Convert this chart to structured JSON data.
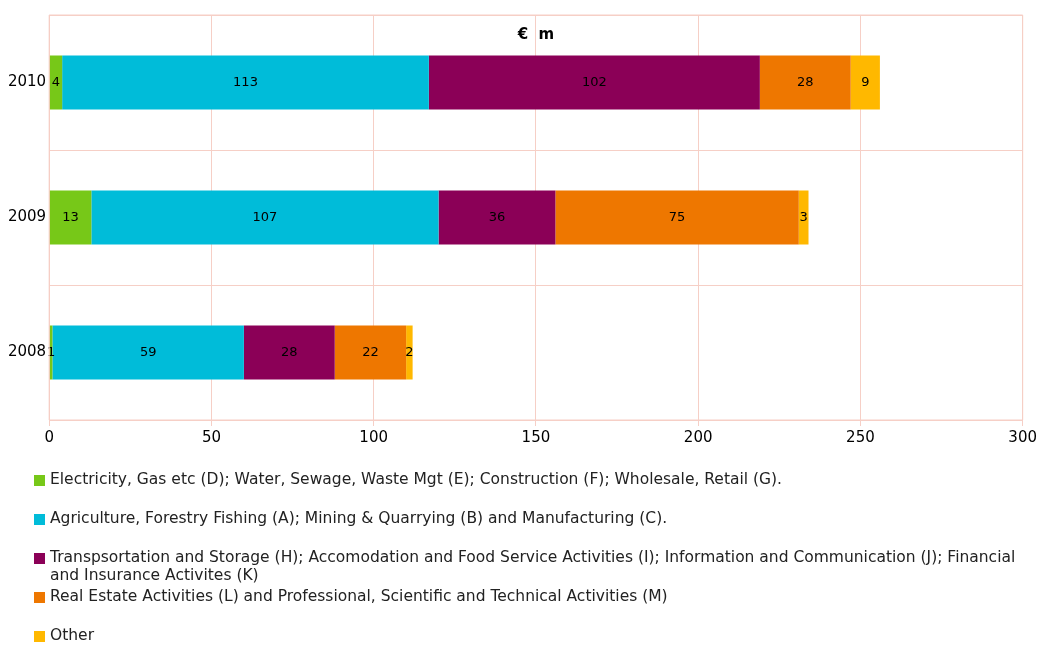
{
  "chart_data": {
    "type": "bar",
    "orientation": "horizontal",
    "stacked": true,
    "title": "€  m",
    "categories": [
      "2010",
      "2009",
      "2008"
    ],
    "series": [
      {
        "name": "Electricity, Gas etc (D); Water, Sewage, Waste Mgt (E); Construction (F); Wholesale, Retail (G).",
        "color": "#77c818",
        "values": [
          4,
          13,
          1
        ]
      },
      {
        "name": "Agriculture, Forestry Fishing (A); Mining & Quarrying (B) and Manufacturing (C).",
        "color": "#00bcd9",
        "values": [
          113,
          107,
          59
        ]
      },
      {
        "name": "Transpsortation and Storage (H); Accomodation and Food Service Activities (I); Information and Communication (J); Financial and Insurance Activites (K)",
        "color": "#8b0057",
        "values": [
          102,
          36,
          28
        ]
      },
      {
        "name": "Real Estate Activities (L) and Professional, Scientific and Technical Activities (M)",
        "color": "#ee7700",
        "values": [
          28,
          75,
          22
        ]
      },
      {
        "name": "Other",
        "color": "#ffb800",
        "values": [
          9,
          3,
          2
        ]
      }
    ],
    "xlim": [
      0,
      300
    ],
    "xticks": [
      0,
      50,
      100,
      150,
      200,
      250,
      300
    ],
    "grid": true,
    "legend": "bottom",
    "data_labels": true
  }
}
